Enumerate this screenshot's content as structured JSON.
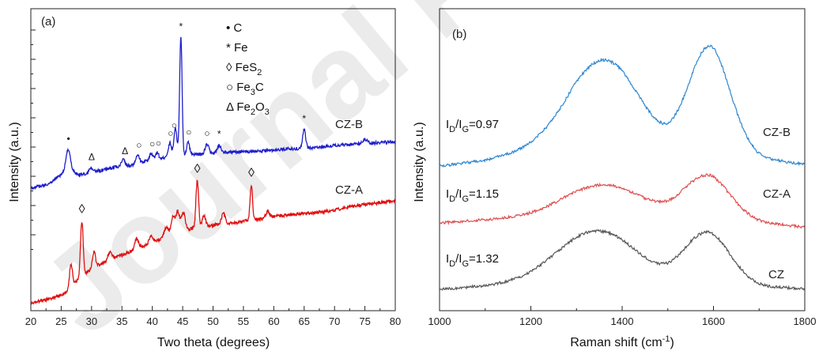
{
  "chart_data": [
    {
      "type": "line",
      "panel_label": "(a)",
      "xlabel": "Two theta (degrees)",
      "ylabel": "Intensity (a.u.)",
      "xlim": [
        20,
        80
      ],
      "x_ticks": [
        "20",
        "25",
        "30",
        "35",
        "40",
        "45",
        "50",
        "55",
        "60",
        "65",
        "70",
        "75",
        "80"
      ],
      "x_tick_values": [
        20,
        25,
        30,
        35,
        40,
        45,
        50,
        55,
        60,
        65,
        70,
        75,
        80
      ],
      "legend": [
        {
          "symbol": "•",
          "label": "C"
        },
        {
          "symbol": "*",
          "label": "Fe"
        },
        {
          "symbol": "◊",
          "label": "FeS",
          "sub": "2"
        },
        {
          "symbol": "○",
          "label": "Fe",
          "sub": "3",
          "label_after": "C"
        },
        {
          "symbol": "Δ",
          "label": "Fe",
          "sub": "2",
          "label_after": "O",
          "sub2": "3"
        }
      ],
      "series": [
        {
          "name": "CZ-B",
          "color": "#1f1fcc",
          "baseline": [
            [
              20,
              238
            ],
            [
              21,
              236
            ],
            [
              22,
              235
            ],
            [
              23,
              233
            ],
            [
              24,
              226
            ],
            [
              25,
              221
            ],
            [
              26,
              210
            ],
            [
              27,
              218
            ],
            [
              28,
              221
            ],
            [
              30,
              218
            ],
            [
              32,
              215
            ],
            [
              34,
              211
            ],
            [
              36,
              210
            ],
            [
              38,
              206
            ],
            [
              40,
              202
            ],
            [
              42,
              200
            ],
            [
              44,
              198
            ],
            [
              46,
              196
            ],
            [
              48,
              195
            ],
            [
              50,
              194
            ],
            [
              52,
              193
            ],
            [
              55,
              192
            ],
            [
              58,
              191
            ],
            [
              60,
              190
            ],
            [
              62,
              188
            ],
            [
              65,
              188
            ],
            [
              68,
              186
            ],
            [
              70,
              184
            ],
            [
              72,
              183
            ],
            [
              75,
              182
            ],
            [
              78,
              180
            ],
            [
              80,
              180
            ]
          ],
          "peaks": [
            [
              26.2,
              22,
              0.35
            ],
            [
              29.9,
              6,
              0.3
            ],
            [
              35.2,
              9,
              0.3
            ],
            [
              37.6,
              12,
              0.25
            ],
            [
              39.8,
              8,
              0.25
            ],
            [
              40.8,
              8,
              0.25
            ],
            [
              42.9,
              18,
              0.25
            ],
            [
              43.8,
              36,
              0.25
            ],
            [
              44.7,
              150,
              0.2
            ],
            [
              45.9,
              16,
              0.25
            ],
            [
              49.0,
              12,
              0.3
            ],
            [
              51.0,
              10,
              0.3
            ],
            [
              65.0,
              24,
              0.25
            ],
            [
              75.0,
              6,
              0.4
            ]
          ]
        },
        {
          "name": "CZ-A",
          "color": "#e01010",
          "baseline": [
            [
              20,
              383
            ],
            [
              22,
              380
            ],
            [
              24,
              376
            ],
            [
              26,
              370
            ],
            [
              28,
              352
            ],
            [
              30,
              340
            ],
            [
              32,
              332
            ],
            [
              34,
              325
            ],
            [
              36,
              320
            ],
            [
              38,
              313
            ],
            [
              40,
              307
            ],
            [
              42,
              300
            ],
            [
              44,
              292
            ],
            [
              46,
              290
            ],
            [
              48,
              288
            ],
            [
              50,
              285
            ],
            [
              52,
              283
            ],
            [
              55,
              280
            ],
            [
              58,
              277
            ],
            [
              60,
              274
            ],
            [
              62,
              272
            ],
            [
              65,
              270
            ],
            [
              68,
              268
            ],
            [
              70,
              266
            ],
            [
              72,
              262
            ],
            [
              75,
              259
            ],
            [
              78,
              256
            ],
            [
              80,
              254
            ]
          ],
          "peaks": [
            [
              26.6,
              30,
              0.25
            ],
            [
              28.4,
              70,
              0.22
            ],
            [
              30.4,
              20,
              0.25
            ],
            [
              33.0,
              10,
              0.3
            ],
            [
              37.4,
              14,
              0.3
            ],
            [
              39.8,
              10,
              0.3
            ],
            [
              42.3,
              12,
              0.3
            ],
            [
              43.4,
              20,
              0.3
            ],
            [
              44.2,
              24,
              0.3
            ],
            [
              45.1,
              22,
              0.3
            ],
            [
              47.4,
              60,
              0.22
            ],
            [
              48.5,
              14,
              0.3
            ],
            [
              51.7,
              14,
              0.3
            ],
            [
              56.3,
              45,
              0.2
            ],
            [
              59.0,
              8,
              0.3
            ]
          ]
        }
      ],
      "annotations": [
        {
          "text": "CZ-B",
          "x": 72,
          "y": "upper"
        },
        {
          "text": "CZ-A",
          "x": 72,
          "y": "lower"
        }
      ],
      "peak_markers": [
        {
          "symbol": "•",
          "x": 26.2
        },
        {
          "symbol": "Δ",
          "x": 30.0
        },
        {
          "symbol": "Δ",
          "x": 35.5
        },
        {
          "symbol": "○",
          "x": 37.8
        },
        {
          "symbol": "○",
          "x": 40.0
        },
        {
          "symbol": "○",
          "x": 41.0
        },
        {
          "symbol": "○",
          "x": 43.0
        },
        {
          "symbol": "○",
          "x": 43.6
        },
        {
          "symbol": "*",
          "x": 44.7
        },
        {
          "symbol": "○",
          "x": 46.0
        },
        {
          "symbol": "○",
          "x": 49.0
        },
        {
          "symbol": "*",
          "x": 51.0
        },
        {
          "symbol": "*",
          "x": 65.0
        },
        {
          "symbol": "◊",
          "x": 28.4
        },
        {
          "symbol": "◊",
          "x": 47.4
        },
        {
          "symbol": "◊",
          "x": 56.3
        }
      ]
    },
    {
      "type": "line",
      "panel_label": "(b)",
      "xlabel": "Raman shift (cm",
      "xlabel_sup": "-1",
      "xlabel_after": ")",
      "ylabel": "Intensity (a.u.)",
      "xlim": [
        1000,
        1800
      ],
      "x_ticks": [
        "1000",
        "1200",
        "1400",
        "1600",
        "1800"
      ],
      "x_tick_values": [
        1000,
        1200,
        1400,
        1600,
        1800
      ],
      "series": [
        {
          "name": "CZ-B",
          "color": "#2f86cf",
          "base": [
            [
              1000,
              210
            ],
            [
              1100,
              203
            ],
            [
              1200,
              190
            ],
            [
              1300,
              176
            ],
            [
              1400,
              176
            ],
            [
              1500,
              190
            ],
            [
              1600,
              178
            ],
            [
              1700,
              200
            ],
            [
              1800,
              208
            ]
          ],
          "bands": [
            [
              1360,
              100,
              75
            ],
            [
              1590,
              120,
              45
            ]
          ]
        },
        {
          "name": "CZ-A",
          "color": "#dd5050",
          "base": [
            [
              1000,
              282
            ],
            [
              1100,
              278
            ],
            [
              1200,
              275
            ],
            [
              1300,
              270
            ],
            [
              1400,
              270
            ],
            [
              1500,
              275
            ],
            [
              1600,
              272
            ],
            [
              1700,
              282
            ],
            [
              1800,
              287
            ]
          ],
          "bands": [
            [
              1360,
              36,
              85
            ],
            [
              1585,
              50,
              50
            ]
          ]
        },
        {
          "name": "CZ",
          "color": "#555555",
          "base": [
            [
              1000,
              366
            ],
            [
              1100,
              362
            ],
            [
              1200,
              357
            ],
            [
              1300,
              352
            ],
            [
              1400,
              352
            ],
            [
              1500,
              358
            ],
            [
              1600,
              354
            ],
            [
              1700,
              363
            ],
            [
              1800,
              365
            ]
          ],
          "bands": [
            [
              1345,
              60,
              85
            ],
            [
              1585,
              60,
              50
            ]
          ]
        }
      ],
      "ratio_labels": [
        {
          "prefix": "I",
          "sub1": "D",
          "mid": "/I",
          "sub2": "G",
          "value": "=0.97"
        },
        {
          "prefix": "I",
          "sub1": "D",
          "mid": "/I",
          "sub2": "G",
          "value": "=1.15"
        },
        {
          "prefix": "I",
          "sub1": "D",
          "mid": "/I",
          "sub2": "G",
          "value": "=1.32"
        }
      ]
    }
  ],
  "watermark": {
    "text": "Journal Pre-proof",
    "color": "#e7e7e7"
  }
}
